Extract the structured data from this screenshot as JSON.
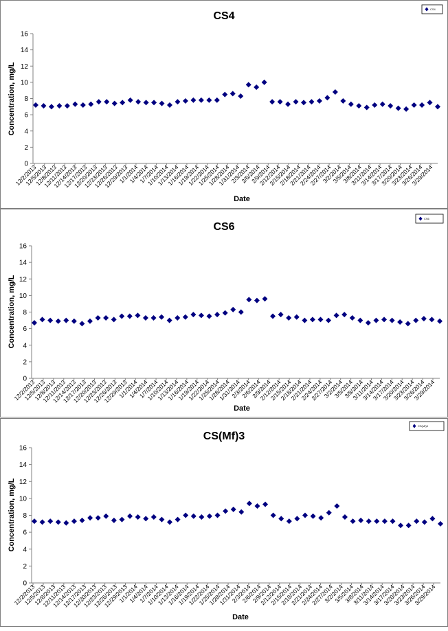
{
  "chart_data": [
    {
      "type": "scatter",
      "title": "CS4",
      "xlabel": "Date",
      "ylabel": "Concentration, mg/L",
      "ylim": [
        0,
        16
      ],
      "yticks": [
        "0",
        "2",
        "4",
        "6",
        "8",
        "10",
        "12",
        "14",
        "16"
      ],
      "xticks": [
        "12/2/2013",
        "12/5/2013",
        "12/8/2013",
        "12/11/2013",
        "12/14/2013",
        "12/17/2013",
        "12/20/2013",
        "12/23/2013",
        "12/26/2013",
        "12/29/2013",
        "1/1/2014",
        "1/4/2014",
        "1/7/2014",
        "1/10/2014",
        "1/13/2014",
        "1/16/2014",
        "1/19/2014",
        "1/22/2014",
        "1/25/2014",
        "1/28/2014",
        "1/31/2014",
        "2/3/2014",
        "2/6/2014",
        "2/9/2014",
        "2/12/2014",
        "2/15/2014",
        "2/18/2014",
        "2/21/2014",
        "2/24/2014",
        "2/27/2014",
        "3/2/2014",
        "3/5/2014",
        "3/8/2014",
        "3/11/2014",
        "3/14/2014",
        "3/17/2014",
        "3/20/2014",
        "3/23/2014",
        "3/26/2014",
        "3/29/2014"
      ],
      "grid": false,
      "legend": {
        "position": "top-right",
        "label": "CS4"
      },
      "series": [
        {
          "name": "CS4",
          "color": "#000080",
          "marker": "diamond",
          "points": [
            [
              0,
              7.2
            ],
            [
              1,
              7.1
            ],
            [
              2,
              7.0
            ],
            [
              3,
              7.1
            ],
            [
              4,
              7.1
            ],
            [
              5,
              7.3
            ],
            [
              6,
              7.2
            ],
            [
              7,
              7.3
            ],
            [
              8,
              7.6
            ],
            [
              9,
              7.6
            ],
            [
              10,
              7.4
            ],
            [
              11,
              7.5
            ],
            [
              12,
              7.8
            ],
            [
              13,
              7.6
            ],
            [
              14,
              7.5
            ],
            [
              15,
              7.5
            ],
            [
              16,
              7.4
            ],
            [
              17,
              7.2
            ],
            [
              18,
              7.6
            ],
            [
              19,
              7.7
            ],
            [
              20,
              7.8
            ],
            [
              21,
              7.8
            ],
            [
              22,
              7.8
            ],
            [
              23,
              7.8
            ],
            [
              24,
              8.5
            ],
            [
              25,
              8.6
            ],
            [
              26,
              8.3
            ],
            [
              27,
              9.7
            ],
            [
              28,
              9.4
            ],
            [
              29,
              10.0
            ],
            [
              30,
              7.6
            ],
            [
              31,
              7.6
            ],
            [
              32,
              7.3
            ],
            [
              33,
              7.6
            ],
            [
              34,
              7.5
            ],
            [
              35,
              7.6
            ],
            [
              36,
              7.7
            ],
            [
              37,
              8.1
            ],
            [
              38,
              8.8
            ],
            [
              39,
              7.7
            ],
            [
              40,
              7.3
            ],
            [
              41,
              7.1
            ],
            [
              42,
              6.9
            ],
            [
              43,
              7.2
            ],
            [
              44,
              7.3
            ],
            [
              45,
              7.1
            ],
            [
              46,
              6.8
            ],
            [
              47,
              6.7
            ],
            [
              48,
              7.2
            ],
            [
              49,
              7.2
            ],
            [
              50,
              7.5
            ],
            [
              51,
              7.0
            ]
          ]
        }
      ]
    },
    {
      "type": "scatter",
      "title": "CS6",
      "xlabel": "Date",
      "ylabel": "Concentration, mg/L",
      "ylim": [
        0,
        16
      ],
      "yticks": [
        "0",
        "2",
        "4",
        "6",
        "8",
        "10",
        "12",
        "14",
        "16"
      ],
      "xticks": [
        "12/2/2013",
        "12/5/2013",
        "12/8/2013",
        "12/11/2013",
        "12/14/2013",
        "12/17/2013",
        "12/20/2013",
        "12/23/2013",
        "12/26/2013",
        "12/29/2013",
        "1/1/2014",
        "1/4/2014",
        "1/7/2014",
        "1/10/2014",
        "1/13/2014",
        "1/16/2014",
        "1/19/2014",
        "1/22/2014",
        "1/25/2014",
        "1/28/2014",
        "1/31/2014",
        "2/3/2014",
        "2/6/2014",
        "2/9/2014",
        "2/12/2014",
        "2/15/2014",
        "2/18/2014",
        "2/21/2014",
        "2/24/2014",
        "2/27/2014",
        "3/2/2014",
        "3/5/2014",
        "3/8/2014",
        "3/11/2014",
        "3/14/2014",
        "3/17/2014",
        "3/20/2014",
        "3/23/2014",
        "3/26/2014",
        "3/29/2014"
      ],
      "grid": false,
      "legend": {
        "position": "top-right",
        "label": "CS6"
      },
      "series": [
        {
          "name": "CS6",
          "color": "#000080",
          "marker": "diamond",
          "points": [
            [
              0,
              6.7
            ],
            [
              1,
              7.1
            ],
            [
              2,
              7.0
            ],
            [
              3,
              6.9
            ],
            [
              4,
              7.0
            ],
            [
              5,
              6.9
            ],
            [
              6,
              6.6
            ],
            [
              7,
              6.9
            ],
            [
              8,
              7.3
            ],
            [
              9,
              7.3
            ],
            [
              10,
              7.1
            ],
            [
              11,
              7.5
            ],
            [
              12,
              7.5
            ],
            [
              13,
              7.6
            ],
            [
              14,
              7.3
            ],
            [
              15,
              7.3
            ],
            [
              16,
              7.4
            ],
            [
              17,
              7.0
            ],
            [
              18,
              7.3
            ],
            [
              19,
              7.4
            ],
            [
              20,
              7.7
            ],
            [
              21,
              7.6
            ],
            [
              22,
              7.5
            ],
            [
              23,
              7.7
            ],
            [
              24,
              7.9
            ],
            [
              25,
              8.3
            ],
            [
              26,
              8.0
            ],
            [
              27,
              9.5
            ],
            [
              28,
              9.4
            ],
            [
              29,
              9.6
            ],
            [
              30,
              7.5
            ],
            [
              31,
              7.7
            ],
            [
              32,
              7.3
            ],
            [
              33,
              7.4
            ],
            [
              34,
              7.0
            ],
            [
              35,
              7.1
            ],
            [
              36,
              7.1
            ],
            [
              37,
              7.0
            ],
            [
              38,
              7.6
            ],
            [
              39,
              7.7
            ],
            [
              40,
              7.3
            ],
            [
              41,
              7.0
            ],
            [
              42,
              6.7
            ],
            [
              43,
              7.0
            ],
            [
              44,
              7.1
            ],
            [
              45,
              7.0
            ],
            [
              46,
              6.8
            ],
            [
              47,
              6.6
            ],
            [
              48,
              7.0
            ],
            [
              49,
              7.2
            ],
            [
              50,
              7.1
            ],
            [
              51,
              6.9
            ]
          ]
        }
      ]
    },
    {
      "type": "scatter",
      "title": "CS(Mf)3",
      "xlabel": "Date",
      "ylabel": "Concentration, mg/L",
      "ylim": [
        0,
        16
      ],
      "yticks": [
        "0",
        "2",
        "4",
        "6",
        "8",
        "10",
        "12",
        "14",
        "16"
      ],
      "xticks": [
        "12/2/2013",
        "12/5/2013",
        "12/8/2013",
        "12/11/2013",
        "12/14/2013",
        "12/17/2013",
        "12/20/2013",
        "12/23/2013",
        "12/26/2013",
        "12/29/2013",
        "1/1/2014",
        "1/4/2014",
        "1/7/2014",
        "1/10/2014",
        "1/13/2014",
        "1/16/2014",
        "1/19/2014",
        "1/22/2014",
        "1/25/2014",
        "1/28/2014",
        "1/31/2014",
        "2/3/2014",
        "2/6/2014",
        "2/9/2014",
        "2/12/2014",
        "2/15/2014",
        "2/18/2014",
        "2/21/2014",
        "2/24/2014",
        "2/27/2014",
        "3/2/2014",
        "3/5/2014",
        "3/8/2014",
        "3/11/2014",
        "3/14/2014",
        "3/17/2014",
        "3/20/2014",
        "3/23/2014",
        "3/26/2014",
        "3/29/2014"
      ],
      "grid": false,
      "legend": {
        "position": "top-right",
        "label": "CS(Mf)3"
      },
      "series": [
        {
          "name": "CS(Mf)3",
          "color": "#000080",
          "marker": "diamond",
          "points": [
            [
              0,
              7.3
            ],
            [
              1,
              7.2
            ],
            [
              2,
              7.3
            ],
            [
              3,
              7.2
            ],
            [
              4,
              7.1
            ],
            [
              5,
              7.3
            ],
            [
              6,
              7.4
            ],
            [
              7,
              7.7
            ],
            [
              8,
              7.7
            ],
            [
              9,
              7.9
            ],
            [
              10,
              7.4
            ],
            [
              11,
              7.5
            ],
            [
              12,
              7.9
            ],
            [
              13,
              7.8
            ],
            [
              14,
              7.6
            ],
            [
              15,
              7.8
            ],
            [
              16,
              7.5
            ],
            [
              17,
              7.2
            ],
            [
              18,
              7.5
            ],
            [
              19,
              8.0
            ],
            [
              20,
              7.9
            ],
            [
              21,
              7.8
            ],
            [
              22,
              7.9
            ],
            [
              23,
              8.0
            ],
            [
              24,
              8.5
            ],
            [
              25,
              8.7
            ],
            [
              26,
              8.4
            ],
            [
              27,
              9.4
            ],
            [
              28,
              9.1
            ],
            [
              29,
              9.3
            ],
            [
              30,
              8.0
            ],
            [
              31,
              7.6
            ],
            [
              32,
              7.3
            ],
            [
              33,
              7.6
            ],
            [
              34,
              8.0
            ],
            [
              35,
              7.9
            ],
            [
              36,
              7.7
            ],
            [
              37,
              8.3
            ],
            [
              38,
              9.1
            ],
            [
              39,
              7.8
            ],
            [
              40,
              7.3
            ],
            [
              41,
              7.4
            ],
            [
              42,
              7.3
            ],
            [
              43,
              7.3
            ],
            [
              44,
              7.3
            ],
            [
              45,
              7.3
            ],
            [
              46,
              6.8
            ],
            [
              47,
              6.8
            ],
            [
              48,
              7.3
            ],
            [
              49,
              7.2
            ],
            [
              50,
              7.6
            ],
            [
              51,
              7.0
            ]
          ]
        }
      ]
    }
  ]
}
